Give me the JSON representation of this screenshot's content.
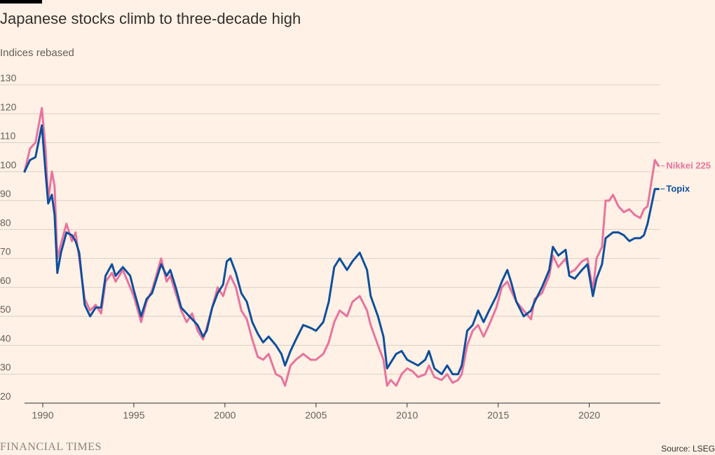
{
  "header": {
    "title": "Japanese stocks climb to three-decade high",
    "subtitle": "Indices rebased"
  },
  "footer": {
    "brand": "FINANCIAL TIMES",
    "source": "Source: LSEG"
  },
  "colors": {
    "background": "#fff1e5",
    "gridline": "#d9cfc6",
    "axis": "#33302e",
    "nikkei": "#e8739e",
    "topix": "#0f4f9c"
  },
  "chart_data": {
    "type": "line",
    "title": "Japanese stocks climb to three-decade high",
    "subtitle": "Indices rebased",
    "xlabel": "",
    "ylabel": "",
    "xlim": [
      1989.0,
      2023.9
    ],
    "ylim": [
      20,
      130
    ],
    "y_ticks": [
      20,
      30,
      40,
      50,
      60,
      70,
      80,
      90,
      100,
      110,
      120,
      130
    ],
    "x_ticks": [
      1990,
      1995,
      2000,
      2005,
      2010,
      2015,
      2020
    ],
    "grid": "horizontal",
    "legend": "direct labels at line ends (right)",
    "series": [
      {
        "name": "Nikkei 225",
        "color": "#e8739e",
        "x": [
          1989.0,
          1989.3,
          1989.6,
          1989.95,
          1990.15,
          1990.3,
          1990.5,
          1990.65,
          1990.8,
          1991.0,
          1991.3,
          1991.6,
          1991.8,
          1992.0,
          1992.3,
          1992.6,
          1992.9,
          1993.2,
          1993.45,
          1993.8,
          1994.0,
          1994.4,
          1994.8,
          1995.0,
          1995.4,
          1995.7,
          1996.0,
          1996.5,
          1996.8,
          1997.0,
          1997.3,
          1997.6,
          1997.9,
          1998.2,
          1998.5,
          1998.8,
          1999.0,
          1999.3,
          1999.6,
          1999.9,
          2000.1,
          2000.3,
          2000.6,
          2000.9,
          2001.2,
          2001.5,
          2001.8,
          2002.1,
          2002.4,
          2002.8,
          2003.1,
          2003.3,
          2003.6,
          2003.9,
          2004.3,
          2004.7,
          2005.0,
          2005.4,
          2005.7,
          2006.0,
          2006.3,
          2006.7,
          2007.0,
          2007.4,
          2007.8,
          2008.0,
          2008.4,
          2008.7,
          2008.9,
          2009.1,
          2009.4,
          2009.7,
          2010.0,
          2010.3,
          2010.6,
          2011.0,
          2011.2,
          2011.5,
          2011.9,
          2012.2,
          2012.5,
          2012.8,
          2013.0,
          2013.3,
          2013.6,
          2013.9,
          2014.2,
          2014.5,
          2014.9,
          2015.2,
          2015.5,
          2015.7,
          2016.0,
          2016.4,
          2016.8,
          2017.0,
          2017.4,
          2017.8,
          2018.0,
          2018.3,
          2018.7,
          2018.9,
          2019.2,
          2019.6,
          2019.9,
          2020.2,
          2020.4,
          2020.7,
          2020.9,
          2021.1,
          2021.3,
          2021.6,
          2021.9,
          2022.2,
          2022.5,
          2022.8,
          2023.0,
          2023.2,
          2023.4,
          2023.6,
          2023.8
        ],
        "values": [
          100,
          108,
          110,
          122,
          108,
          90,
          100,
          95,
          70,
          75,
          82,
          76,
          79,
          70,
          56,
          52,
          54,
          51,
          62,
          65,
          62,
          66,
          60,
          57,
          48,
          55,
          59,
          70,
          62,
          64,
          58,
          52,
          48,
          51,
          45,
          42,
          46,
          53,
          60,
          57,
          61,
          64,
          60,
          52,
          49,
          42,
          36,
          35,
          37,
          30,
          29,
          26,
          33,
          35,
          37,
          35,
          35,
          37,
          41,
          48,
          52,
          50,
          55,
          57,
          52,
          47,
          40,
          35,
          26,
          28,
          26,
          30,
          32,
          31,
          29,
          30,
          33,
          29,
          28,
          30,
          27,
          28,
          30,
          40,
          45,
          47,
          43,
          47,
          53,
          60,
          62,
          59,
          55,
          52,
          49,
          56,
          58,
          64,
          71,
          67,
          70,
          65,
          66,
          69,
          70,
          59,
          70,
          74,
          90,
          90,
          92,
          88,
          86,
          87,
          85,
          84,
          87,
          88,
          96,
          104,
          102
        ]
      },
      {
        "name": "Topix",
        "color": "#0f4f9c",
        "x": [
          1989.0,
          1989.3,
          1989.6,
          1989.95,
          1990.15,
          1990.3,
          1990.5,
          1990.65,
          1990.8,
          1991.0,
          1991.3,
          1991.6,
          1991.8,
          1992.0,
          1992.3,
          1992.6,
          1992.9,
          1993.2,
          1993.45,
          1993.8,
          1994.0,
          1994.4,
          1994.8,
          1995.0,
          1995.4,
          1995.7,
          1996.0,
          1996.5,
          1996.8,
          1997.0,
          1997.3,
          1997.6,
          1997.9,
          1998.2,
          1998.5,
          1998.8,
          1999.0,
          1999.3,
          1999.6,
          1999.9,
          2000.1,
          2000.3,
          2000.6,
          2000.9,
          2001.2,
          2001.5,
          2001.8,
          2002.1,
          2002.4,
          2002.8,
          2003.1,
          2003.3,
          2003.6,
          2003.9,
          2004.3,
          2004.7,
          2005.0,
          2005.4,
          2005.7,
          2006.0,
          2006.3,
          2006.7,
          2007.0,
          2007.4,
          2007.8,
          2008.0,
          2008.4,
          2008.7,
          2008.9,
          2009.1,
          2009.4,
          2009.7,
          2010.0,
          2010.3,
          2010.6,
          2011.0,
          2011.2,
          2011.5,
          2011.9,
          2012.2,
          2012.5,
          2012.8,
          2013.0,
          2013.3,
          2013.6,
          2013.9,
          2014.2,
          2014.5,
          2014.9,
          2015.2,
          2015.5,
          2015.7,
          2016.0,
          2016.4,
          2016.8,
          2017.0,
          2017.4,
          2017.8,
          2018.0,
          2018.3,
          2018.7,
          2018.9,
          2019.2,
          2019.6,
          2019.9,
          2020.2,
          2020.4,
          2020.7,
          2020.9,
          2021.1,
          2021.3,
          2021.6,
          2021.9,
          2022.2,
          2022.5,
          2022.8,
          2023.0,
          2023.2,
          2023.4,
          2023.6,
          2023.8
        ],
        "values": [
          100,
          104,
          105,
          116,
          100,
          89,
          92,
          85,
          65,
          72,
          79,
          78,
          76,
          72,
          54,
          50,
          53,
          53,
          64,
          68,
          64,
          67,
          64,
          59,
          50,
          56,
          58,
          68,
          64,
          66,
          60,
          53,
          51,
          49,
          47,
          43,
          45,
          53,
          58,
          61,
          69,
          70,
          65,
          58,
          55,
          48,
          44,
          41,
          43,
          40,
          37,
          33,
          38,
          42,
          47,
          46,
          45,
          48,
          55,
          67,
          70,
          66,
          69,
          72,
          66,
          57,
          50,
          43,
          32,
          34,
          37,
          38,
          35,
          34,
          33,
          35,
          38,
          32,
          30,
          33,
          30,
          30,
          33,
          45,
          47,
          52,
          48,
          52,
          57,
          62,
          66,
          62,
          55,
          50,
          52,
          55,
          60,
          66,
          74,
          71,
          73,
          64,
          63,
          66,
          68,
          57,
          63,
          68,
          77,
          78,
          79,
          79,
          78,
          76,
          77,
          77,
          78,
          82,
          88,
          94,
          94
        ]
      }
    ]
  }
}
